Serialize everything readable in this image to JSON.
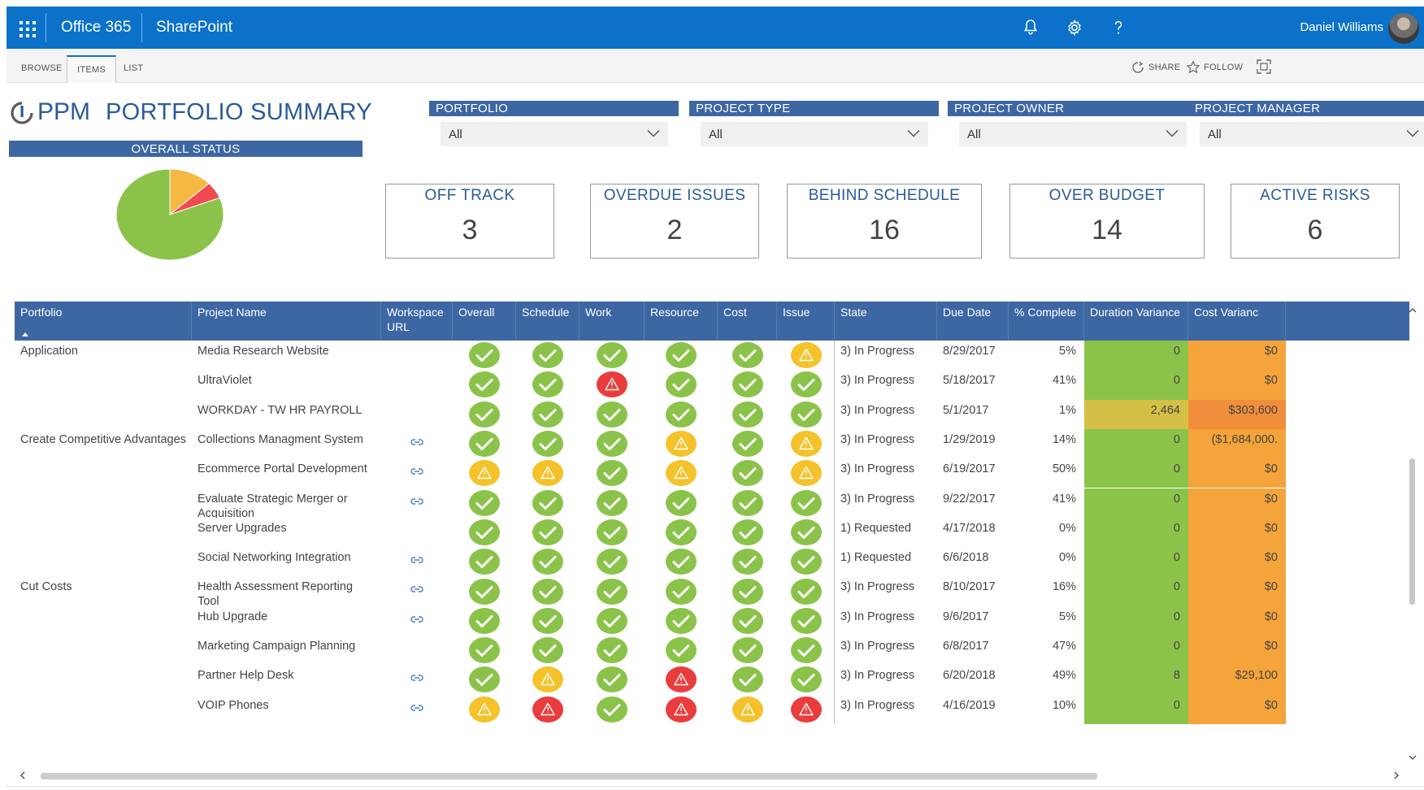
{
  "suite": {
    "app_name": "Office 365",
    "site_name": "SharePoint",
    "user_name": "Daniel Williams",
    "brand_color": "#0c72c9"
  },
  "ribbon": {
    "tabs": [
      "BROWSE",
      "ITEMS",
      "LIST"
    ],
    "share": "SHARE",
    "follow": "FOLLOW"
  },
  "header": {
    "logo_text": "PPM",
    "title": "PORTFOLIO SUMMARY",
    "overall_status": "OVERALL STATUS"
  },
  "filters": [
    {
      "label": "PORTFOLIO",
      "value": "All"
    },
    {
      "label": "PROJECT TYPE",
      "value": "All"
    },
    {
      "label": "PROJECT OWNER",
      "value": "All"
    },
    {
      "label": "PROJECT MANAGER",
      "value": "All"
    }
  ],
  "kpis": [
    {
      "label": "OFF TRACK",
      "value": "3"
    },
    {
      "label": "OVERDUE ISSUES",
      "value": "2"
    },
    {
      "label": "BEHIND SCHEDULE",
      "value": "16"
    },
    {
      "label": "OVER BUDGET",
      "value": "14"
    },
    {
      "label": "ACTIVE RISKS",
      "value": "6"
    }
  ],
  "chart_data": {
    "type": "pie",
    "slices": [
      {
        "status": "on track",
        "value": 0.81,
        "color": "#8bc34a"
      },
      {
        "status": "at risk",
        "value": 0.13,
        "color": "#f4b843"
      },
      {
        "status": "off track",
        "value": 0.06,
        "color": "#f04a50"
      }
    ]
  },
  "table": {
    "columns": [
      "Portfolio",
      "Project Name",
      "Workspace URL",
      "Overall",
      "Schedule",
      "Work",
      "Resource",
      "Cost",
      "Issue",
      "State",
      "Due Date",
      "% Complete",
      "Duration Variance",
      "Cost Varianc"
    ],
    "status_colors": {
      "ok": "#8bc34a",
      "warn": "#f5c22b",
      "bad": "#ea3c3c"
    },
    "rows": [
      {
        "portfolio": "Application",
        "name": "Media Research Website",
        "link": false,
        "status": [
          "ok",
          "ok",
          "ok",
          "ok",
          "ok",
          "warn"
        ],
        "state": "3) In Progress",
        "due": "8/29/2017",
        "pct": "5%",
        "dur_var": "0",
        "cost_var": "$0",
        "dur_color": "#8bc34a",
        "cost_color": "#f4a43a"
      },
      {
        "portfolio": "",
        "name": "UltraViolet",
        "link": false,
        "status": [
          "ok",
          "ok",
          "bad",
          "ok",
          "ok",
          "ok"
        ],
        "state": "3) In Progress",
        "due": "5/18/2017",
        "pct": "41%",
        "dur_var": "0",
        "cost_var": "$0",
        "dur_color": "#8bc34a",
        "cost_color": "#f4a43a"
      },
      {
        "portfolio": "",
        "name": "WORKDAY - TW HR PAYROLL",
        "link": false,
        "status": [
          "ok",
          "ok",
          "ok",
          "ok",
          "ok",
          "ok"
        ],
        "state": "3) In Progress",
        "due": "5/1/2017",
        "pct": "1%",
        "dur_var": "2,464",
        "cost_var": "$303,600",
        "dur_color": "#d4c047",
        "cost_color": "#f08e3c"
      },
      {
        "portfolio": "Create Competitive Advantages",
        "name": "Collections Managment System",
        "link": true,
        "status": [
          "ok",
          "ok",
          "ok",
          "warn",
          "ok",
          "warn"
        ],
        "state": "3) In Progress",
        "due": "1/29/2019",
        "pct": "14%",
        "dur_var": "0",
        "cost_var": "($1,684,000.",
        "dur_color": "#8bc34a",
        "cost_color": "#f4a43a"
      },
      {
        "portfolio": "",
        "name": "Ecommerce Portal Development",
        "link": true,
        "status": [
          "warn",
          "warn",
          "ok",
          "warn",
          "ok",
          "warn"
        ],
        "state": "3) In Progress",
        "due": "6/19/2017",
        "pct": "50%",
        "dur_var": "0",
        "cost_var": "$0",
        "dur_color": "#8bc34a",
        "cost_color": "#f4a43a"
      },
      {
        "portfolio": "",
        "name": "Evaluate Strategic Merger or Acquisition",
        "link": true,
        "status": [
          "ok",
          "ok",
          "ok",
          "ok",
          "ok",
          "ok"
        ],
        "state": "3) In Progress",
        "due": "9/22/2017",
        "pct": "41%",
        "dur_var": "0",
        "cost_var": "$0",
        "dur_color": "#8bc34a",
        "cost_color": "#f4a43a"
      },
      {
        "portfolio": "",
        "name": "Server Upgrades",
        "link": false,
        "status": [
          "ok",
          "ok",
          "ok",
          "ok",
          "ok",
          "ok"
        ],
        "state": "1) Requested",
        "due": "4/17/2018",
        "pct": "0%",
        "dur_var": "0",
        "cost_var": "$0",
        "dur_color": "#8bc34a",
        "cost_color": "#f4a43a"
      },
      {
        "portfolio": "",
        "name": "Social Networking Integration",
        "link": true,
        "status": [
          "ok",
          "ok",
          "ok",
          "ok",
          "ok",
          "ok"
        ],
        "state": "1) Requested",
        "due": "6/6/2018",
        "pct": "0%",
        "dur_var": "0",
        "cost_var": "$0",
        "dur_color": "#8bc34a",
        "cost_color": "#f4a43a"
      },
      {
        "portfolio": "Cut Costs",
        "name": "Health Assessment Reporting Tool",
        "link": true,
        "status": [
          "ok",
          "ok",
          "ok",
          "ok",
          "ok",
          "ok"
        ],
        "state": "3) In Progress",
        "due": "8/10/2017",
        "pct": "16%",
        "dur_var": "0",
        "cost_var": "$0",
        "dur_color": "#8bc34a",
        "cost_color": "#f4a43a"
      },
      {
        "portfolio": "",
        "name": "Hub Upgrade",
        "link": true,
        "status": [
          "ok",
          "ok",
          "ok",
          "ok",
          "ok",
          "ok"
        ],
        "state": "3) In Progress",
        "due": "9/6/2017",
        "pct": "5%",
        "dur_var": "0",
        "cost_var": "$0",
        "dur_color": "#8bc34a",
        "cost_color": "#f4a43a"
      },
      {
        "portfolio": "",
        "name": "Marketing Campaign Planning",
        "link": false,
        "status": [
          "ok",
          "ok",
          "ok",
          "ok",
          "ok",
          "ok"
        ],
        "state": "3) In Progress",
        "due": "6/8/2017",
        "pct": "47%",
        "dur_var": "0",
        "cost_var": "$0",
        "dur_color": "#8bc34a",
        "cost_color": "#f4a43a"
      },
      {
        "portfolio": "",
        "name": "Partner Help Desk",
        "link": true,
        "status": [
          "ok",
          "warn",
          "ok",
          "bad",
          "ok",
          "ok"
        ],
        "state": "3) In Progress",
        "due": "6/20/2018",
        "pct": "49%",
        "dur_var": "8",
        "cost_var": "$29,100",
        "dur_color": "#8bc34a",
        "cost_color": "#f4a43a"
      },
      {
        "portfolio": "",
        "name": "VOIP Phones",
        "link": true,
        "status": [
          "warn",
          "bad",
          "ok",
          "bad",
          "warn",
          "bad"
        ],
        "state": "3) In Progress",
        "due": "4/16/2019",
        "pct": "10%",
        "dur_var": "0",
        "cost_var": "$0",
        "dur_color": "#8bc34a",
        "cost_color": "#f4a43a"
      }
    ]
  }
}
